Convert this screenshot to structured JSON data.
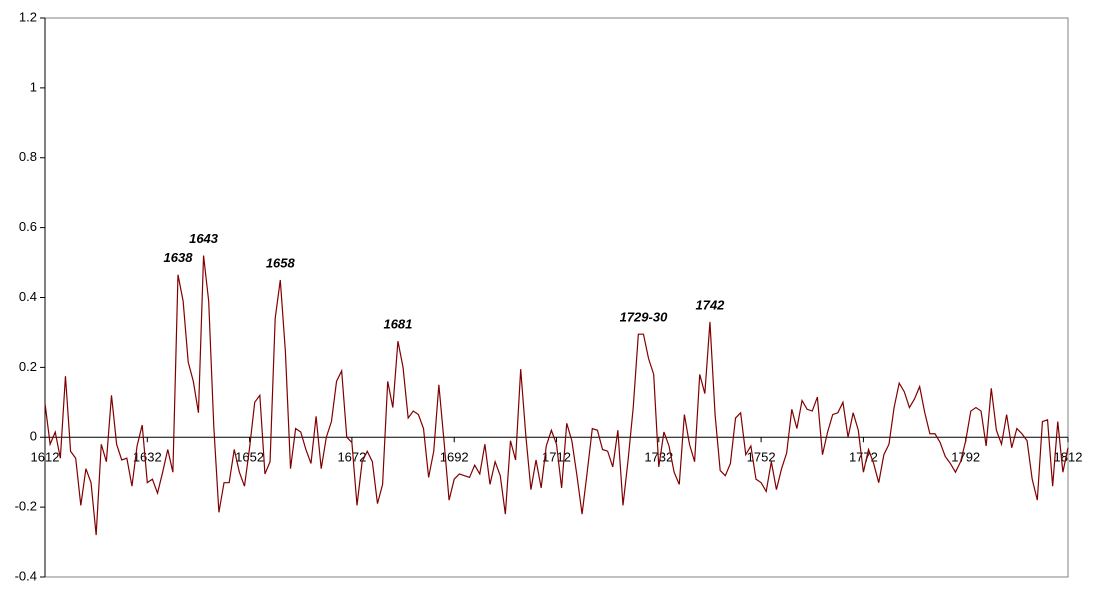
{
  "chart_data": {
    "type": "line",
    "x": [
      1612,
      1613,
      1614,
      1615,
      1616,
      1617,
      1618,
      1619,
      1620,
      1621,
      1622,
      1623,
      1624,
      1625,
      1626,
      1627,
      1628,
      1629,
      1630,
      1631,
      1632,
      1633,
      1634,
      1635,
      1636,
      1637,
      1638,
      1639,
      1640,
      1641,
      1642,
      1643,
      1644,
      1645,
      1646,
      1647,
      1648,
      1649,
      1650,
      1651,
      1652,
      1653,
      1654,
      1655,
      1656,
      1657,
      1658,
      1659,
      1660,
      1661,
      1662,
      1663,
      1664,
      1665,
      1666,
      1667,
      1668,
      1669,
      1670,
      1671,
      1672,
      1673,
      1674,
      1675,
      1676,
      1677,
      1678,
      1679,
      1680,
      1681,
      1682,
      1683,
      1684,
      1685,
      1686,
      1687,
      1688,
      1689,
      1690,
      1691,
      1692,
      1693,
      1694,
      1695,
      1696,
      1697,
      1698,
      1699,
      1700,
      1701,
      1702,
      1703,
      1704,
      1705,
      1706,
      1707,
      1708,
      1709,
      1710,
      1711,
      1712,
      1713,
      1714,
      1715,
      1716,
      1717,
      1718,
      1719,
      1720,
      1721,
      1722,
      1723,
      1724,
      1725,
      1726,
      1727,
      1728,
      1729,
      1730,
      1731,
      1732,
      1733,
      1734,
      1735,
      1736,
      1737,
      1738,
      1739,
      1740,
      1741,
      1742,
      1743,
      1744,
      1745,
      1746,
      1747,
      1748,
      1749,
      1750,
      1751,
      1752,
      1753,
      1754,
      1755,
      1756,
      1757,
      1758,
      1759,
      1760,
      1761,
      1762,
      1763,
      1764,
      1765,
      1766,
      1767,
      1768,
      1769,
      1770,
      1771,
      1772,
      1773,
      1774,
      1775,
      1776,
      1777,
      1778,
      1779,
      1780,
      1781,
      1782,
      1783,
      1784,
      1785,
      1786,
      1787,
      1788,
      1789,
      1790,
      1791,
      1792,
      1793,
      1794,
      1795,
      1796,
      1797,
      1798,
      1799,
      1800,
      1801,
      1802,
      1803,
      1804,
      1805,
      1806,
      1807,
      1808,
      1809,
      1810,
      1811,
      1812
    ],
    "series": [
      {
        "color": "#800000",
        "values": [
          0.097,
          -0.02,
          0.015,
          -0.06,
          0.175,
          -0.04,
          -0.06,
          -0.195,
          -0.09,
          -0.13,
          -0.28,
          -0.02,
          -0.07,
          0.12,
          -0.02,
          -0.065,
          -0.06,
          -0.14,
          -0.025,
          0.035,
          -0.13,
          -0.12,
          -0.16,
          -0.1,
          -0.035,
          -0.1,
          0.465,
          0.39,
          0.215,
          0.16,
          0.07,
          0.52,
          0.39,
          0.03,
          -0.215,
          -0.13,
          -0.13,
          -0.035,
          -0.1,
          -0.14,
          -0.03,
          0.1,
          0.12,
          -0.105,
          -0.07,
          0.34,
          0.45,
          0.245,
          -0.09,
          0.025,
          0.015,
          -0.035,
          -0.075,
          0.06,
          -0.09,
          0,
          0.045,
          0.16,
          0.19,
          0,
          -0.015,
          -0.195,
          -0.07,
          -0.04,
          -0.07,
          -0.19,
          -0.135,
          0.16,
          0.085,
          0.275,
          0.2,
          0.055,
          0.075,
          0.065,
          0.025,
          -0.115,
          -0.04,
          0.15,
          -0.01,
          -0.18,
          -0.12,
          -0.105,
          -0.11,
          -0.115,
          -0.08,
          -0.105,
          -0.02,
          -0.135,
          -0.07,
          -0.11,
          -0.22,
          -0.01,
          -0.065,
          0.195,
          0.005,
          -0.15,
          -0.065,
          -0.145,
          -0.025,
          0.02,
          -0.02,
          -0.145,
          0.04,
          -0.01,
          -0.11,
          -0.22,
          -0.1,
          0.025,
          0.02,
          -0.035,
          -0.04,
          -0.085,
          0.02,
          -0.195,
          -0.065,
          0.085,
          0.295,
          0.295,
          0.225,
          0.18,
          -0.085,
          0.015,
          -0.025,
          -0.1,
          -0.135,
          0.065,
          -0.02,
          -0.07,
          0.18,
          0.125,
          0.33,
          0.065,
          -0.095,
          -0.11,
          -0.075,
          0.055,
          0.07,
          -0.05,
          -0.025,
          -0.12,
          -0.13,
          -0.155,
          -0.07,
          -0.15,
          -0.09,
          -0.045,
          0.08,
          0.025,
          0.105,
          0.08,
          0.075,
          0.115,
          -0.05,
          0.015,
          0.065,
          0.07,
          0.1,
          0,
          0.07,
          0.02,
          -0.1,
          -0.035,
          -0.075,
          -0.13,
          -0.05,
          -0.02,
          0.085,
          0.155,
          0.13,
          0.085,
          0.11,
          0.145,
          0.07,
          0.01,
          0.01,
          -0.015,
          -0.055,
          -0.075,
          -0.1,
          -0.07,
          -0.01,
          0.075,
          0.085,
          0.075,
          -0.025,
          0.14,
          0.02,
          -0.02,
          0.065,
          -0.03,
          0.025,
          0.01,
          -0.01,
          -0.12,
          -0.18,
          0.045,
          0.05,
          -0.14,
          0.045,
          -0.1,
          -0.03
        ]
      }
    ],
    "annotations": [
      {
        "text": "1638",
        "x": 1638
      },
      {
        "text": "1643",
        "x": 1643
      },
      {
        "text": "1658",
        "x": 1658
      },
      {
        "text": "1681",
        "x": 1681
      },
      {
        "text": "1729-30",
        "x": 1729
      },
      {
        "text": "1742",
        "x": 1742
      }
    ],
    "xlim": [
      1612,
      1812
    ],
    "xticks": [
      1612,
      1632,
      1652,
      1672,
      1692,
      1712,
      1732,
      1752,
      1772,
      1792,
      1812
    ],
    "ylim": [
      -0.4,
      1.2
    ],
    "yticks": [
      -0.4,
      -0.2,
      0,
      0.2,
      0.4,
      0.6,
      0.8,
      1,
      1.2
    ]
  }
}
